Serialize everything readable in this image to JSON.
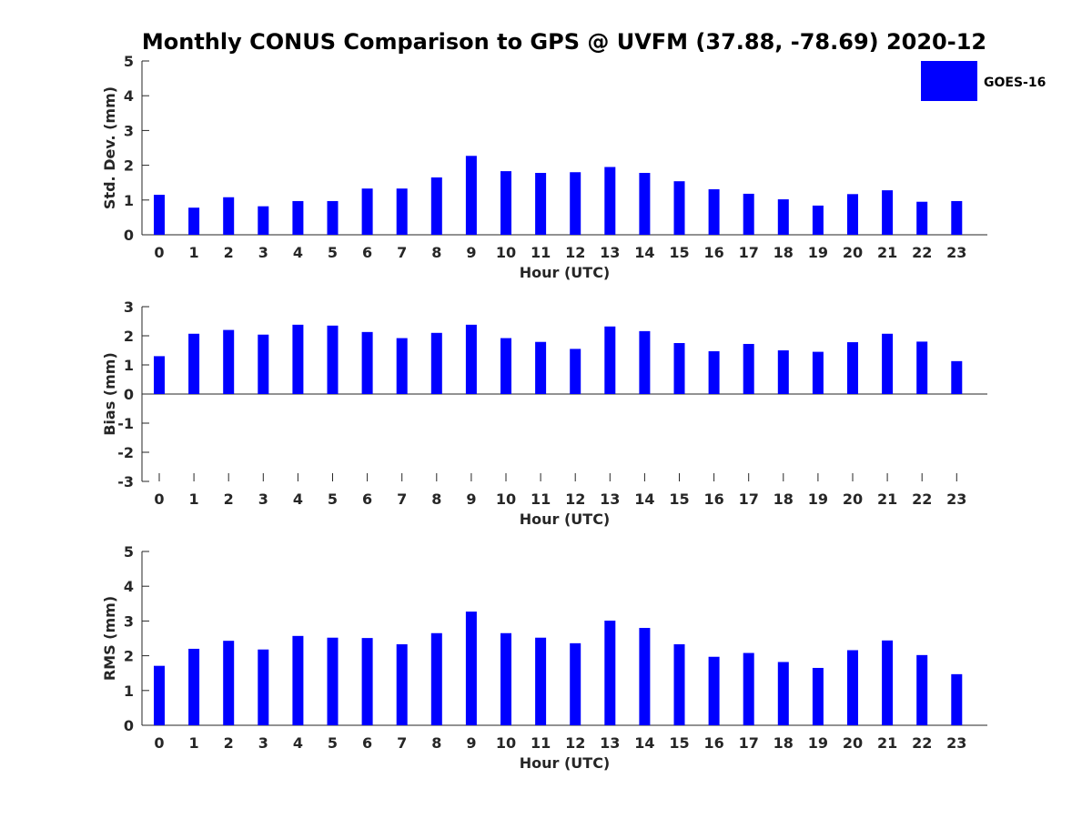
{
  "chart_data": {
    "title": "Monthly CONUS Comparison to GPS @ UVFM (37.88, -78.69) 2020-12",
    "legend": {
      "label": "GOES-16",
      "color": "#0000ff",
      "placement": "top-right"
    },
    "bar_color": "#0000ff",
    "panels": [
      {
        "type": "bar",
        "ylabel": "Std. Dev. (mm)",
        "xlabel": "Hour (UTC)",
        "ylim": [
          0,
          5
        ],
        "yticks": [
          0,
          1,
          2,
          3,
          4,
          5
        ],
        "categories": [
          "0",
          "1",
          "2",
          "3",
          "4",
          "5",
          "6",
          "7",
          "8",
          "9",
          "10",
          "11",
          "12",
          "13",
          "14",
          "15",
          "16",
          "17",
          "18",
          "19",
          "20",
          "21",
          "22",
          "23"
        ],
        "series": [
          {
            "name": "GOES-16",
            "values": [
              1.15,
              0.78,
              1.08,
              0.82,
              0.97,
              0.97,
              1.33,
              1.33,
              1.65,
              2.27,
              1.83,
              1.78,
              1.8,
              1.95,
              1.78,
              1.54,
              1.31,
              1.18,
              1.02,
              0.84,
              1.17,
              1.28,
              0.95,
              0.97
            ]
          }
        ]
      },
      {
        "type": "bar",
        "ylabel": "Bias (mm)",
        "xlabel": "Hour (UTC)",
        "ylim": [
          -3,
          3
        ],
        "yticks": [
          -3,
          -2,
          -1,
          0,
          1,
          2,
          3
        ],
        "categories": [
          "0",
          "1",
          "2",
          "3",
          "4",
          "5",
          "6",
          "7",
          "8",
          "9",
          "10",
          "11",
          "12",
          "13",
          "14",
          "15",
          "16",
          "17",
          "18",
          "19",
          "20",
          "21",
          "22",
          "23"
        ],
        "series": [
          {
            "name": "GOES-16",
            "values": [
              1.3,
              2.07,
              2.2,
              2.04,
              2.38,
              2.35,
              2.13,
              1.92,
              2.1,
              2.38,
              1.92,
              1.79,
              1.55,
              2.32,
              2.16,
              1.75,
              1.47,
              1.72,
              1.5,
              1.45,
              1.78,
              2.07,
              1.8,
              1.13
            ]
          }
        ]
      },
      {
        "type": "bar",
        "ylabel": "RMS (mm)",
        "xlabel": "Hour (UTC)",
        "ylim": [
          0,
          5
        ],
        "yticks": [
          0,
          1,
          2,
          3,
          4,
          5
        ],
        "categories": [
          "0",
          "1",
          "2",
          "3",
          "4",
          "5",
          "6",
          "7",
          "8",
          "9",
          "10",
          "11",
          "12",
          "13",
          "14",
          "15",
          "16",
          "17",
          "18",
          "19",
          "20",
          "21",
          "22",
          "23"
        ],
        "series": [
          {
            "name": "GOES-16",
            "values": [
              1.71,
              2.2,
              2.43,
              2.18,
              2.57,
              2.52,
              2.51,
              2.33,
              2.65,
              3.27,
              2.65,
              2.52,
              2.36,
              3.01,
              2.8,
              2.33,
              1.97,
              2.08,
              1.82,
              1.65,
              2.16,
              2.44,
              2.02,
              1.47
            ]
          }
        ]
      }
    ]
  }
}
